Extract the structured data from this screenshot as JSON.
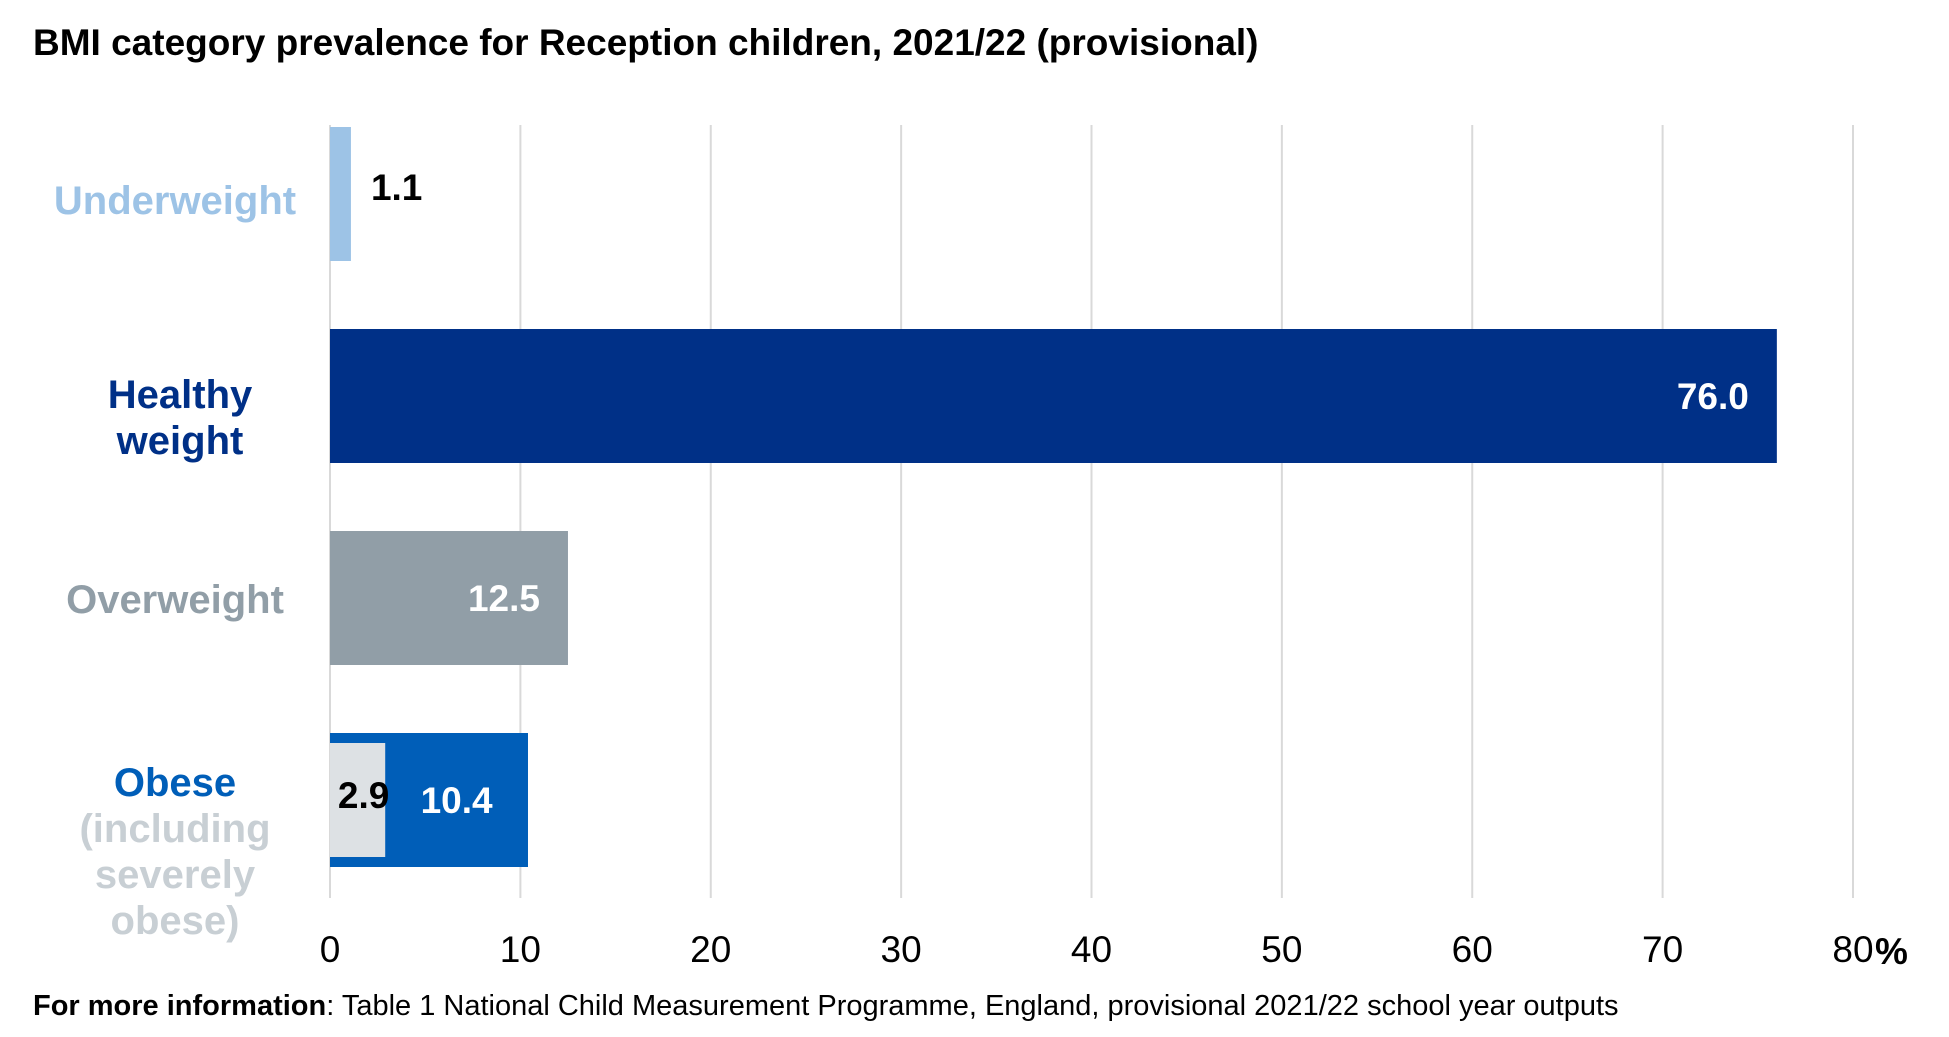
{
  "title": "BMI category prevalence for Reception children, 2021/22 (provisional)",
  "footer": {
    "bold": "For more information",
    "text": ": Table 1 National Child Measurement Programme, England, provisional 2021/22 school year outputs"
  },
  "categories": {
    "underweight": "Underweight",
    "healthy": [
      "Healthy",
      "weight"
    ],
    "overweight": "Overweight",
    "obese_main": "Obese",
    "obese_sub": [
      "(including",
      "severely",
      "obese)"
    ]
  },
  "colors": {
    "underweight": "#9dc3e6",
    "healthy": "#003087",
    "overweight": "#919ea7",
    "obese": "#005eb8",
    "severely_obese": "#dde1e4",
    "obese_sub_label": "#c8cfd4",
    "grid": "#d9d9d9"
  },
  "chart_data": {
    "type": "bar",
    "orientation": "horizontal",
    "title": "BMI category prevalence for Reception children, 2021/22 (provisional)",
    "xlim": [
      0,
      80
    ],
    "xticks": [
      0,
      10,
      20,
      30,
      40,
      50,
      60,
      70,
      80
    ],
    "xunit": "%",
    "bars": [
      {
        "category": "Underweight",
        "value": 1.1,
        "label": "1.1",
        "color": "#9dc3e6"
      },
      {
        "category": "Healthy weight",
        "value": 76.0,
        "label": "76.0",
        "color": "#003087"
      },
      {
        "category": "Overweight",
        "value": 12.5,
        "label": "12.5",
        "color": "#919ea7"
      },
      {
        "category": "Obese (including severely obese)",
        "value": 10.4,
        "label": "10.4",
        "color": "#005eb8",
        "inner": {
          "category": "severely obese",
          "value": 2.9,
          "label": "2.9",
          "color": "#dde1e4"
        }
      }
    ],
    "grid": true
  }
}
